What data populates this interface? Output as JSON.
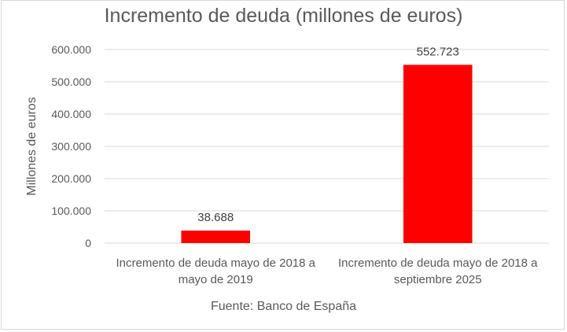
{
  "chart_data": {
    "type": "bar",
    "title": "Incremento de deuda (millones de euros)",
    "ylabel": "Millones de euros",
    "xlabel": "Fuente: Banco de España",
    "categories": [
      [
        "Incremento de deuda mayo de 2018 a",
        "mayo de 2019"
      ],
      [
        "Incremento de deuda mayo de 2018 a",
        "septiembre 2025"
      ]
    ],
    "values": [
      38688,
      552723
    ],
    "data_labels": [
      "38.688",
      "552.723"
    ],
    "ylim": [
      0,
      600000
    ],
    "yticks": [
      0,
      100000,
      200000,
      300000,
      400000,
      500000,
      600000
    ],
    "ytick_labels": [
      "0",
      "100.000",
      "200.000",
      "300.000",
      "400.000",
      "500.000",
      "600.000"
    ],
    "grid": true,
    "bar_color": "#ff0000",
    "legend": "none"
  }
}
